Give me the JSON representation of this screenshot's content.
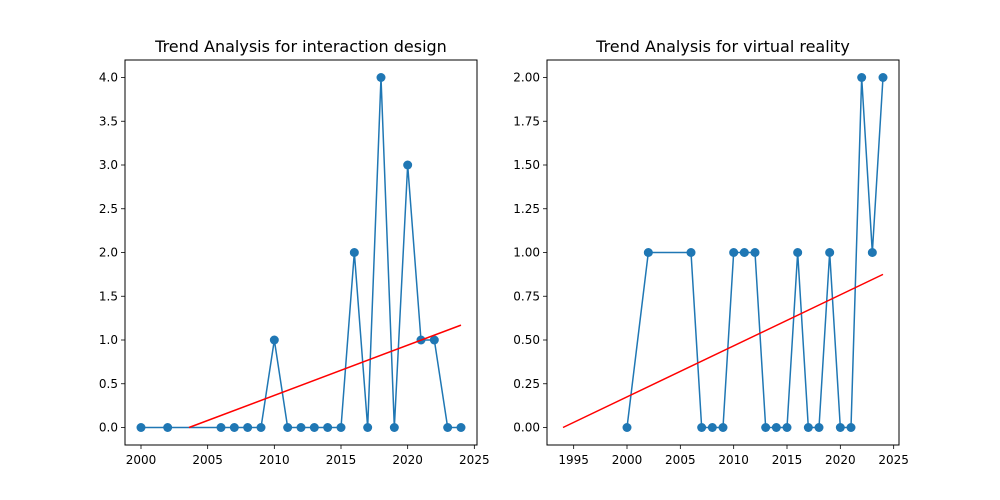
{
  "chart_data": [
    {
      "type": "line",
      "title": "Trend Analysis for interaction design",
      "xlabel": "",
      "ylabel": "",
      "xlim": [
        1998.8,
        2025.2
      ],
      "ylim": [
        -0.2,
        4.2
      ],
      "xticks": [
        2000,
        2005,
        2010,
        2015,
        2020,
        2025
      ],
      "yticks": [
        0.0,
        0.5,
        1.0,
        1.5,
        2.0,
        2.5,
        3.0,
        3.5,
        4.0
      ],
      "ytick_labels": [
        "0.0",
        "0.5",
        "1.0",
        "1.5",
        "2.0",
        "2.5",
        "3.0",
        "3.5",
        "4.0"
      ],
      "grid": false,
      "series": [
        {
          "style": "line-markers",
          "color": "#1f77b4",
          "x": [
            2000,
            2002,
            2006,
            2007,
            2008,
            2009,
            2010,
            2011,
            2012,
            2013,
            2014,
            2015,
            2016,
            2017,
            2018,
            2019,
            2020,
            2021,
            2022,
            2023,
            2024
          ],
          "y": [
            0,
            0,
            0,
            0,
            0,
            0,
            1,
            0,
            0,
            0,
            0,
            0,
            2,
            0,
            4,
            0,
            3,
            1,
            1,
            0,
            0
          ]
        },
        {
          "style": "line",
          "color": "#ff0000",
          "x": [
            2003.6,
            2024.0
          ],
          "y": [
            0.0,
            1.17
          ]
        }
      ]
    },
    {
      "type": "line",
      "title": "Trend Analysis for virtual reality",
      "xlabel": "",
      "ylabel": "",
      "xlim": [
        1992.5,
        2025.5
      ],
      "ylim": [
        -0.1,
        2.1
      ],
      "xticks": [
        1995,
        2000,
        2005,
        2010,
        2015,
        2020,
        2025
      ],
      "yticks": [
        0.0,
        0.25,
        0.5,
        0.75,
        1.0,
        1.25,
        1.5,
        1.75,
        2.0
      ],
      "ytick_labels": [
        "0.00",
        "0.25",
        "0.50",
        "0.75",
        "1.00",
        "1.25",
        "1.50",
        "1.75",
        "2.00"
      ],
      "grid": false,
      "series": [
        {
          "style": "line-markers",
          "color": "#1f77b4",
          "x": [
            2000,
            2002,
            2006,
            2007,
            2008,
            2009,
            2010,
            2011,
            2012,
            2013,
            2014,
            2015,
            2016,
            2017,
            2018,
            2019,
            2020,
            2021,
            2022,
            2023,
            2024
          ],
          "y": [
            0,
            1,
            1,
            0,
            0,
            0,
            1,
            1,
            1,
            0,
            0,
            0,
            1,
            0,
            0,
            1,
            0,
            0,
            2,
            1,
            2
          ]
        },
        {
          "style": "line",
          "color": "#ff0000",
          "x": [
            1994.0,
            2024.0
          ],
          "y": [
            0.0,
            0.875
          ]
        }
      ]
    }
  ]
}
